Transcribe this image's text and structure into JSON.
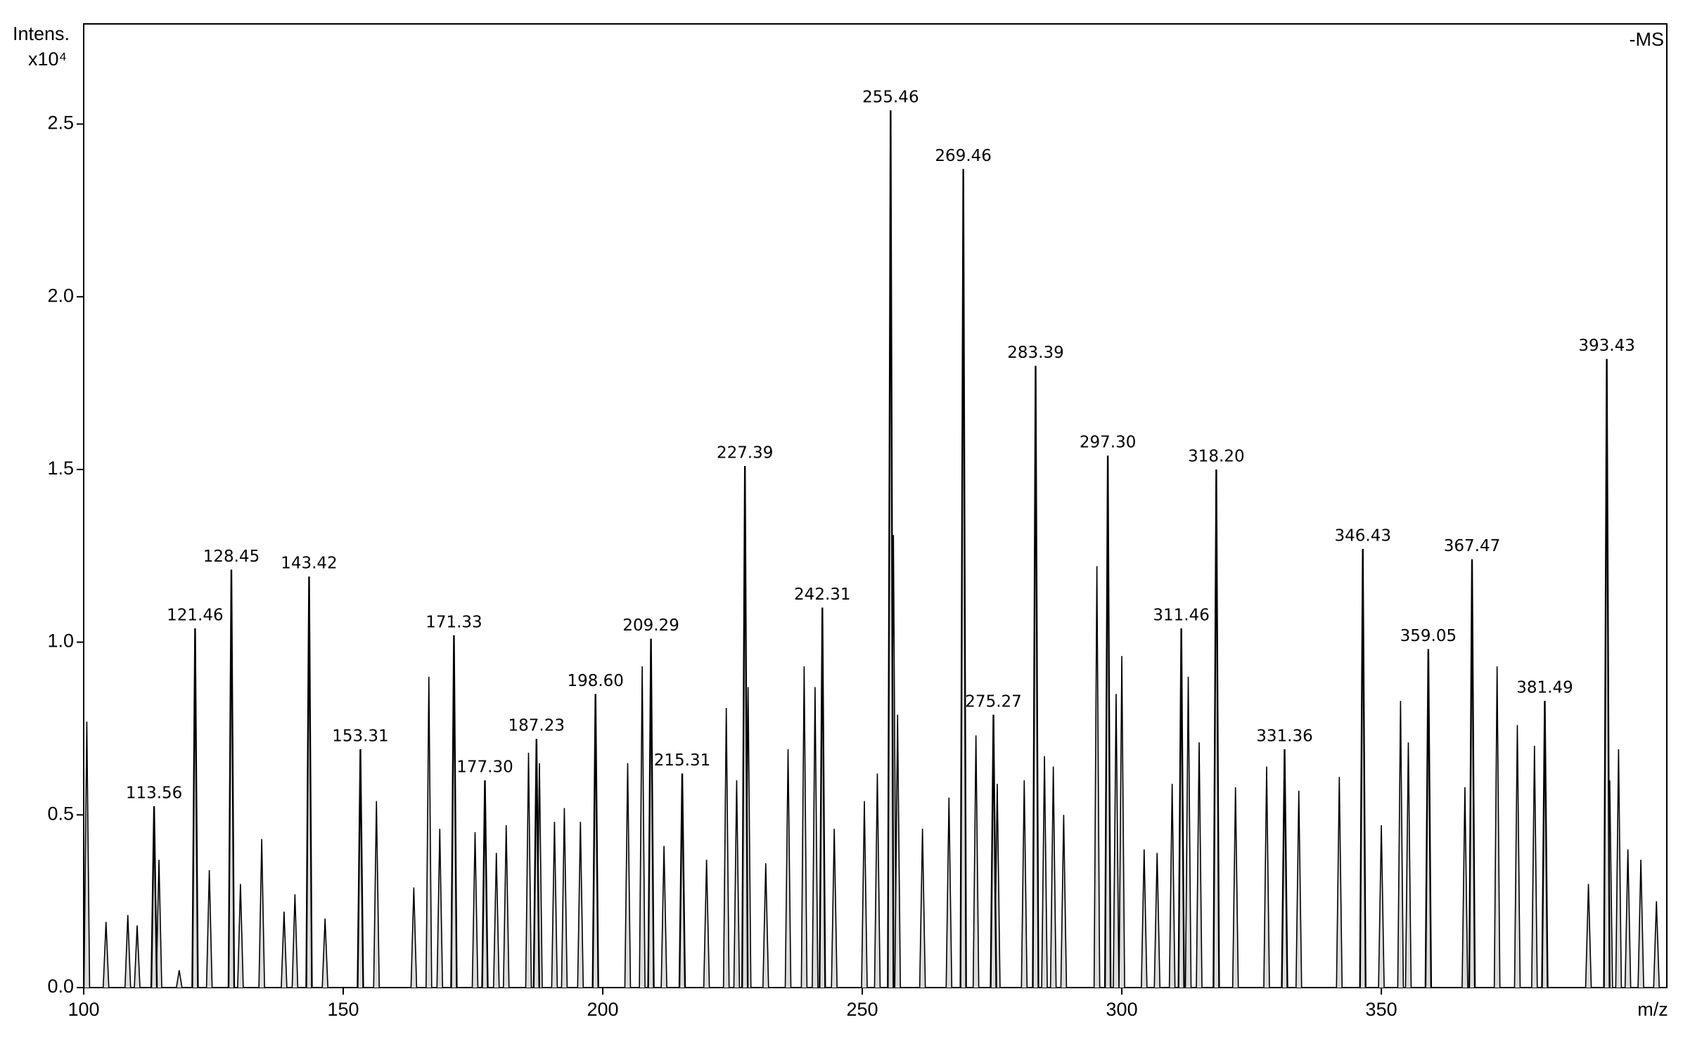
{
  "chart_data": {
    "type": "spectrum",
    "y_label": "Intens.",
    "y_scale": "x10⁴",
    "annotation": "-MS",
    "x_label": "m/z",
    "xlim": [
      100,
      405
    ],
    "xticks": [
      100,
      150,
      200,
      250,
      300,
      350
    ],
    "ylim": [
      0,
      2.79
    ],
    "yticks": [
      {
        "value": 0,
        "label": "0.0"
      },
      0.5,
      {
        "value": 1,
        "label": "1.0"
      },
      1.5,
      {
        "value": 2,
        "label": "2.0"
      },
      2.5
    ],
    "color": "#000000",
    "peaks": {
      "x": [
        113.56,
        121.46,
        128.45,
        143.42,
        153.31,
        171.33,
        177.3,
        187.23,
        198.6,
        209.29,
        215.31,
        227.39,
        242.31,
        255.46,
        269.46,
        275.27,
        283.39,
        297.3,
        311.46,
        318.2,
        331.36,
        346.43,
        359.05,
        367.47,
        381.49,
        393.43
      ],
      "x_labels": [
        "113.56",
        "121.46",
        "128.45",
        "143.42",
        "153.31",
        "171.33",
        "177.30",
        "187.23",
        "198.60",
        "209.29",
        "215.31",
        "227.39",
        "242.31",
        "255.46",
        "269.46",
        "275.27",
        "283.39",
        "297.30",
        "311.46",
        "318.20",
        "331.36",
        "346.43",
        "359.05",
        "367.47",
        "381.49",
        "393.43"
      ],
      "values": [
        0.525,
        1.04,
        1.21,
        1.19,
        0.69,
        1.02,
        0.6,
        0.72,
        0.85,
        1.01,
        0.62,
        1.51,
        1.1,
        2.54,
        2.37,
        0.79,
        1.8,
        1.54,
        1.04,
        1.5,
        0.69,
        1.27,
        0.98,
        1.24,
        0.83,
        1.82
      ]
    },
    "minor_peaks": {
      "x": [
        100.6,
        104.3,
        108.5,
        110.3,
        114.5,
        118.4,
        124.2,
        130.2,
        134.3,
        138.6,
        140.7,
        146.5,
        156.4,
        163.6,
        166.5,
        168.6,
        175.4,
        179.5,
        181.4,
        185.7,
        187.8,
        190.7,
        192.6,
        195.7,
        204.8,
        207.6,
        211.8,
        220.0,
        223.8,
        225.8,
        228.0,
        231.4,
        235.7,
        238.8,
        240.9,
        244.6,
        250.4,
        252.9,
        256.0,
        256.8,
        261.6,
        266.7,
        271.9,
        276.0,
        281.2,
        285.1,
        286.8,
        288.8,
        295.2,
        298.9,
        300.0,
        304.3,
        306.8,
        309.7,
        312.8,
        314.9,
        321.9,
        327.9,
        334.1,
        341.9,
        350.0,
        353.7,
        355.2,
        366.1,
        372.3,
        376.2,
        379.5,
        389.9,
        394.0,
        395.7,
        397.5,
        400.0,
        403.0
      ],
      "values": [
        0.77,
        0.19,
        0.21,
        0.18,
        0.37,
        0.05,
        0.34,
        0.3,
        0.43,
        0.22,
        0.27,
        0.2,
        0.54,
        0.29,
        0.9,
        0.46,
        0.45,
        0.39,
        0.47,
        0.68,
        0.65,
        0.48,
        0.52,
        0.48,
        0.65,
        0.93,
        0.41,
        0.37,
        0.81,
        0.6,
        0.87,
        0.36,
        0.69,
        0.93,
        0.87,
        0.46,
        0.54,
        0.62,
        1.31,
        0.79,
        0.46,
        0.55,
        0.73,
        0.59,
        0.6,
        0.67,
        0.64,
        0.5,
        1.22,
        0.85,
        0.96,
        0.4,
        0.39,
        0.59,
        0.9,
        0.71,
        0.58,
        0.64,
        0.57,
        0.61,
        0.47,
        0.83,
        0.71,
        0.58,
        0.93,
        0.76,
        0.7,
        0.3,
        0.6,
        0.69,
        0.4,
        0.37,
        0.25
      ]
    }
  }
}
